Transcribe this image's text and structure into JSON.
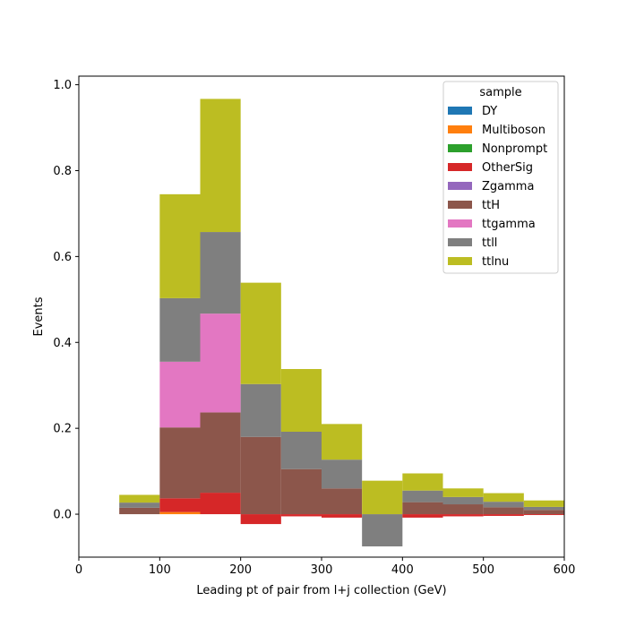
{
  "chart_data": {
    "type": "bar",
    "stacked": true,
    "bin_edges": [
      50,
      100,
      150,
      200,
      250,
      300,
      350,
      400,
      450,
      500,
      550,
      600
    ],
    "xlabel": "Leading pt of pair from l+j collection (GeV)",
    "ylabel": "Events",
    "xlim": [
      0,
      600
    ],
    "ylim": [
      -0.1,
      1.02
    ],
    "xticks": [
      0,
      100,
      200,
      300,
      400,
      500,
      600
    ],
    "yticks": [
      0.0,
      0.2,
      0.4,
      0.6,
      0.8,
      1.0
    ],
    "xtick_labels": [
      "0",
      "100",
      "200",
      "300",
      "400",
      "500",
      "600"
    ],
    "ytick_labels": [
      "0.0",
      "0.2",
      "0.4",
      "0.6",
      "0.8",
      "1.0"
    ],
    "grid": false,
    "legend": {
      "title": "sample",
      "placement": "top-right"
    },
    "series": [
      {
        "name": "DY",
        "color": "#1f77b4",
        "values": [
          0,
          0,
          0,
          0,
          0,
          0,
          0,
          0,
          0,
          0,
          0
        ]
      },
      {
        "name": "Multiboson",
        "color": "#ff7f0e",
        "values": [
          0,
          0.005,
          0,
          0,
          0,
          0,
          0,
          0,
          0,
          0,
          0
        ]
      },
      {
        "name": "Nonprompt",
        "color": "#2ca02c",
        "values": [
          0,
          0,
          0,
          0,
          0,
          0,
          0,
          0,
          0,
          0,
          0
        ]
      },
      {
        "name": "OtherSig",
        "color": "#d62728",
        "values": [
          0.0,
          0.032,
          0.05,
          -0.023,
          -0.005,
          -0.008,
          0,
          -0.008,
          -0.005,
          -0.004,
          -0.002
        ]
      },
      {
        "name": "Zgamma",
        "color": "#9467bd",
        "values": [
          0,
          0,
          0,
          0,
          0,
          0,
          0,
          0,
          0,
          0,
          0
        ]
      },
      {
        "name": "ttH",
        "color": "#8c564b",
        "values": [
          0.015,
          0.165,
          0.187,
          0.18,
          0.105,
          0.06,
          0,
          0.028,
          0.023,
          0.016,
          0.01
        ]
      },
      {
        "name": "ttgamma",
        "color": "#e377c2",
        "values": [
          0,
          0.153,
          0.23,
          0,
          0,
          0,
          0,
          0,
          0,
          0,
          0
        ]
      },
      {
        "name": "ttll",
        "color": "#7f7f7f",
        "values": [
          0.012,
          0.148,
          0.19,
          0.123,
          0.087,
          0.067,
          -0.075,
          0.027,
          0.017,
          0.013,
          0.007
        ]
      },
      {
        "name": "ttlnu",
        "color": "#bcbd22",
        "values": [
          0.018,
          0.242,
          0.31,
          0.236,
          0.146,
          0.083,
          0.078,
          0.04,
          0.02,
          0.02,
          0.015
        ]
      }
    ]
  }
}
